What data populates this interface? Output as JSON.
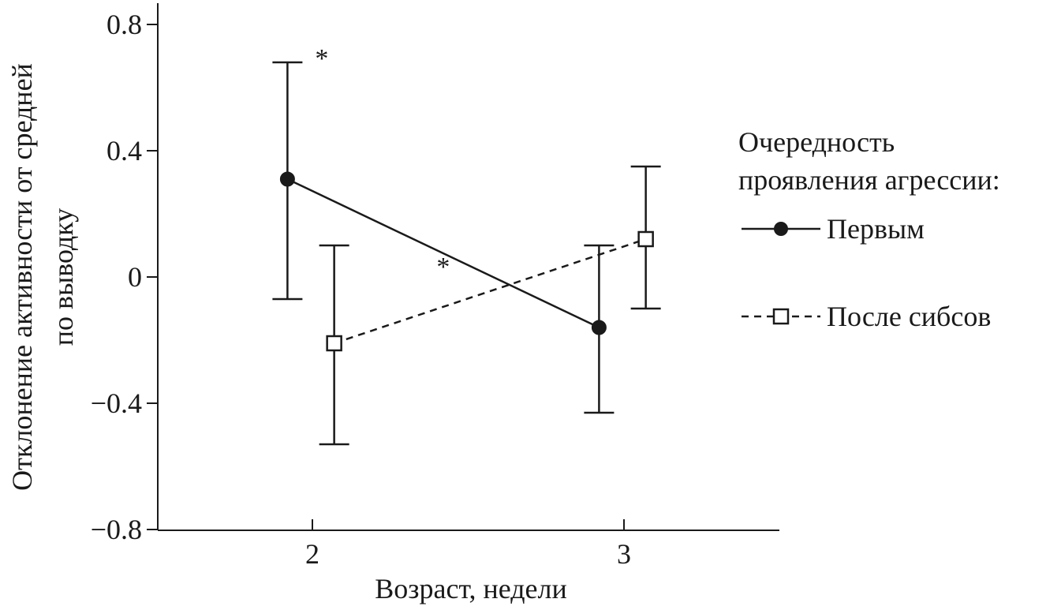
{
  "chart_data": {
    "type": "line",
    "title": "",
    "xlabel": "Возраст, недели",
    "ylabel_lines": [
      "Отклонение активности от средней",
      "по выводку"
    ],
    "x_ticks": [
      2,
      3
    ],
    "x_tick_labels": [
      "2",
      "3"
    ],
    "xlim": [
      1.5,
      3.5
    ],
    "y_ticks": [
      -0.8,
      -0.4,
      0,
      0.4,
      0.8
    ],
    "y_tick_labels": [
      "−0.8",
      "−0.4",
      "0",
      "0.4",
      "0.8"
    ],
    "ylim": [
      -0.8,
      0.85
    ],
    "grid": false,
    "legend": {
      "placement": "right",
      "title_lines": [
        "Очередность",
        "проявления агрессии:"
      ]
    },
    "series": [
      {
        "name": "Первым",
        "marker": "filled-circle",
        "line_style": "solid",
        "color": "#1a1a1a",
        "points": [
          {
            "x": 2,
            "x_offset": -0.08,
            "y": 0.31,
            "err_low": -0.07,
            "err_high": 0.68
          },
          {
            "x": 3,
            "x_offset": -0.08,
            "y": -0.16,
            "err_low": -0.43,
            "err_high": 0.1
          }
        ]
      },
      {
        "name": "После сибсов",
        "marker": "open-square",
        "line_style": "dashed",
        "color": "#1a1a1a",
        "points": [
          {
            "x": 2,
            "x_offset": 0.07,
            "y": -0.21,
            "err_low": -0.53,
            "err_high": 0.1
          },
          {
            "x": 3,
            "x_offset": 0.07,
            "y": 0.12,
            "err_low": -0.1,
            "err_high": 0.35
          }
        ]
      }
    ],
    "annotations": [
      {
        "text": "*",
        "x": 2.03,
        "y": 0.71
      },
      {
        "text": "*",
        "x": 2.42,
        "y": 0.05
      }
    ]
  }
}
